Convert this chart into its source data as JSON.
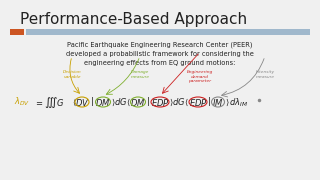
{
  "title": "Performance-Based Approach",
  "bg_color": "#f0f0f0",
  "header_bar_color1": "#cc5522",
  "header_bar_color2": "#a0b8cc",
  "body_line1": "Pacific Earthquake Engineering Research Center (PEER)",
  "body_line2": "developed a probabilistic framework for considering the",
  "body_line3": "engineering effects from EQ ground motions:",
  "label_dv": "Decision\nvariable",
  "label_dm": "Damage\nmeasure",
  "label_edp": "Engineering\ndemand\nparameter",
  "label_im": "Intensity\nmeasure",
  "col_dv": "#c8a000",
  "col_dm": "#80b030",
  "col_edp": "#cc2020",
  "col_im": "#888888",
  "col_text": "#222222",
  "title_fs": 11,
  "body_fs": 4.8,
  "formula_fs": 6.0,
  "label_fs": 3.2
}
